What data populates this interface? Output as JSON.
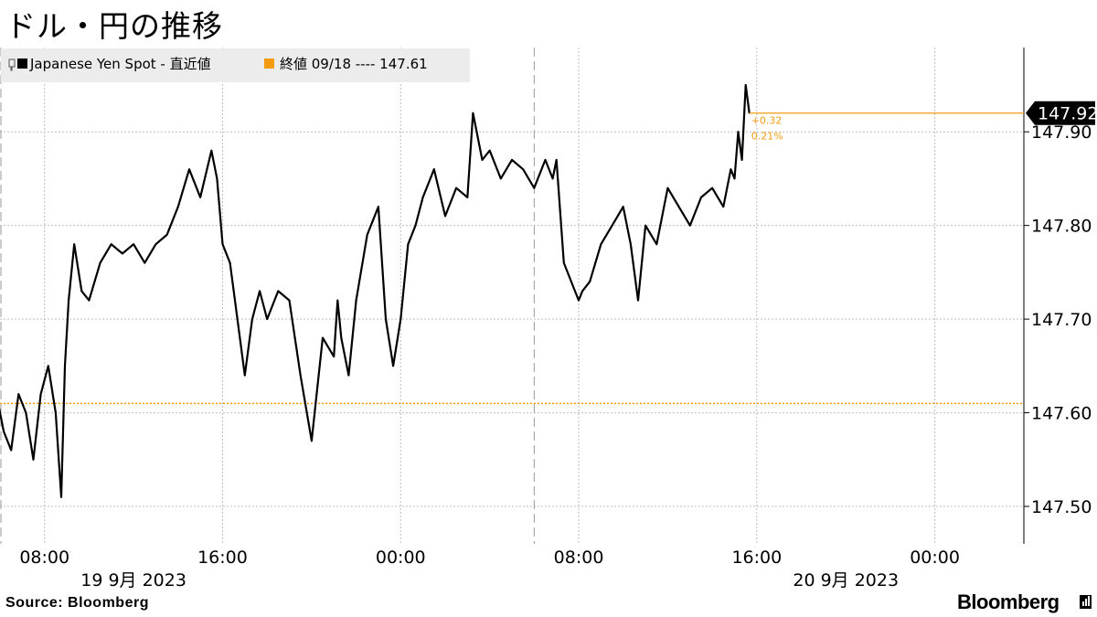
{
  "title": "ドル・円の推移",
  "source": "Source:  Bloomberg",
  "brand": "Bloomberg",
  "colors": {
    "line": "#000000",
    "accent": "#f39c12",
    "grid": "#bdbdbd",
    "legend_bg": "#ececec",
    "label_bg": "#000000"
  },
  "legend": {
    "series_label": "Japanese Yen Spot - 直近値",
    "reference_label": "終値 09/18 ---- 147.61"
  },
  "chart_data": {
    "type": "line",
    "series": [
      {
        "name": "Japanese Yen Spot - 直近値",
        "x": [
          "2023-09-19 05:30",
          "2023-09-19 05:50",
          "2023-09-19 06:10",
          "2023-09-19 06:30",
          "2023-09-19 06:50",
          "2023-09-19 07:10",
          "2023-09-19 07:30",
          "2023-09-19 07:50",
          "2023-09-19 08:10",
          "2023-09-19 08:30",
          "2023-09-19 08:45",
          "2023-09-19 08:55",
          "2023-09-19 09:05",
          "2023-09-19 09:20",
          "2023-09-19 09:40",
          "2023-09-19 10:00",
          "2023-09-19 10:30",
          "2023-09-19 11:00",
          "2023-09-19 11:30",
          "2023-09-19 12:00",
          "2023-09-19 12:30",
          "2023-09-19 13:00",
          "2023-09-19 13:30",
          "2023-09-19 14:00",
          "2023-09-19 14:30",
          "2023-09-19 15:00",
          "2023-09-19 15:30",
          "2023-09-19 15:45",
          "2023-09-19 16:00",
          "2023-09-19 16:20",
          "2023-09-19 16:40",
          "2023-09-19 17:00",
          "2023-09-19 17:20",
          "2023-09-19 17:40",
          "2023-09-19 18:00",
          "2023-09-19 18:30",
          "2023-09-19 19:00",
          "2023-09-19 19:30",
          "2023-09-19 20:00",
          "2023-09-19 20:30",
          "2023-09-19 21:00",
          "2023-09-19 21:10",
          "2023-09-19 21:20",
          "2023-09-19 21:40",
          "2023-09-19 22:00",
          "2023-09-19 22:30",
          "2023-09-19 23:00",
          "2023-09-19 23:20",
          "2023-09-19 23:40",
          "2023-09-20 00:00",
          "2023-09-20 00:20",
          "2023-09-20 00:40",
          "2023-09-20 01:00",
          "2023-09-20 01:30",
          "2023-09-20 02:00",
          "2023-09-20 02:30",
          "2023-09-20 03:00",
          "2023-09-20 03:15",
          "2023-09-20 03:40",
          "2023-09-20 04:00",
          "2023-09-20 04:30",
          "2023-09-20 05:00",
          "2023-09-20 05:30",
          "2023-09-20 06:00",
          "2023-09-20 06:30",
          "2023-09-20 06:50",
          "2023-09-20 07:00",
          "2023-09-20 07:20",
          "2023-09-20 07:40",
          "2023-09-20 08:00",
          "2023-09-20 08:10",
          "2023-09-20 08:30",
          "2023-09-20 09:00",
          "2023-09-20 09:30",
          "2023-09-20 10:00",
          "2023-09-20 10:20",
          "2023-09-20 10:40",
          "2023-09-20 11:00",
          "2023-09-20 11:30",
          "2023-09-20 12:00",
          "2023-09-20 12:30",
          "2023-09-20 13:00",
          "2023-09-20 13:30",
          "2023-09-20 14:00",
          "2023-09-20 14:30",
          "2023-09-20 14:50",
          "2023-09-20 15:00",
          "2023-09-20 15:10",
          "2023-09-20 15:20",
          "2023-09-20 15:30",
          "2023-09-20 15:40"
        ],
        "values": [
          147.66,
          147.62,
          147.58,
          147.56,
          147.62,
          147.6,
          147.55,
          147.62,
          147.65,
          147.6,
          147.51,
          147.65,
          147.72,
          147.78,
          147.73,
          147.72,
          147.76,
          147.78,
          147.77,
          147.78,
          147.76,
          147.78,
          147.79,
          147.82,
          147.86,
          147.83,
          147.88,
          147.85,
          147.78,
          147.76,
          147.7,
          147.64,
          147.7,
          147.73,
          147.7,
          147.73,
          147.72,
          147.64,
          147.57,
          147.68,
          147.66,
          147.72,
          147.68,
          147.64,
          147.72,
          147.79,
          147.82,
          147.7,
          147.65,
          147.7,
          147.78,
          147.8,
          147.83,
          147.86,
          147.81,
          147.84,
          147.83,
          147.92,
          147.87,
          147.88,
          147.85,
          147.87,
          147.86,
          147.84,
          147.87,
          147.85,
          147.87,
          147.76,
          147.74,
          147.72,
          147.73,
          147.74,
          147.78,
          147.8,
          147.82,
          147.78,
          147.72,
          147.8,
          147.78,
          147.84,
          147.82,
          147.8,
          147.83,
          147.84,
          147.82,
          147.86,
          147.85,
          147.9,
          147.87,
          147.95,
          147.92
        ]
      }
    ],
    "reference_line": {
      "label": "終値 09/18",
      "value": 147.61
    },
    "last_value": 147.92,
    "change_annotation": {
      "abs": "+0.32",
      "pct": "0.21%"
    },
    "ylim": [
      147.46,
      147.99
    ],
    "y_ticks": [
      "147.50",
      "147.60",
      "147.70",
      "147.80",
      "147.90"
    ],
    "x_ticks": [
      {
        "t": "2023-09-19 08:00",
        "label": "08:00"
      },
      {
        "t": "2023-09-19 16:00",
        "label": "16:00"
      },
      {
        "t": "2023-09-20 00:00",
        "label": "00:00"
      },
      {
        "t": "2023-09-20 08:00",
        "label": "08:00"
      },
      {
        "t": "2023-09-20 16:00",
        "label": "16:00"
      },
      {
        "t": "2023-09-21 00:00",
        "label": "00:00"
      }
    ],
    "date_labels": [
      {
        "t": "2023-09-19 12:00",
        "label": "19 9月  2023"
      },
      {
        "t": "2023-09-20 20:00",
        "label": "20 9月  2023"
      }
    ],
    "session_breaks": [
      "2023-09-19 02:00",
      "2023-09-20 06:00"
    ],
    "x_range": [
      "2023-09-19 06:00",
      "2023-09-21 04:00"
    ],
    "grid": true,
    "legend_position": "top-left",
    "title": "ドル・円の推移",
    "xlabel": "",
    "ylabel": ""
  }
}
